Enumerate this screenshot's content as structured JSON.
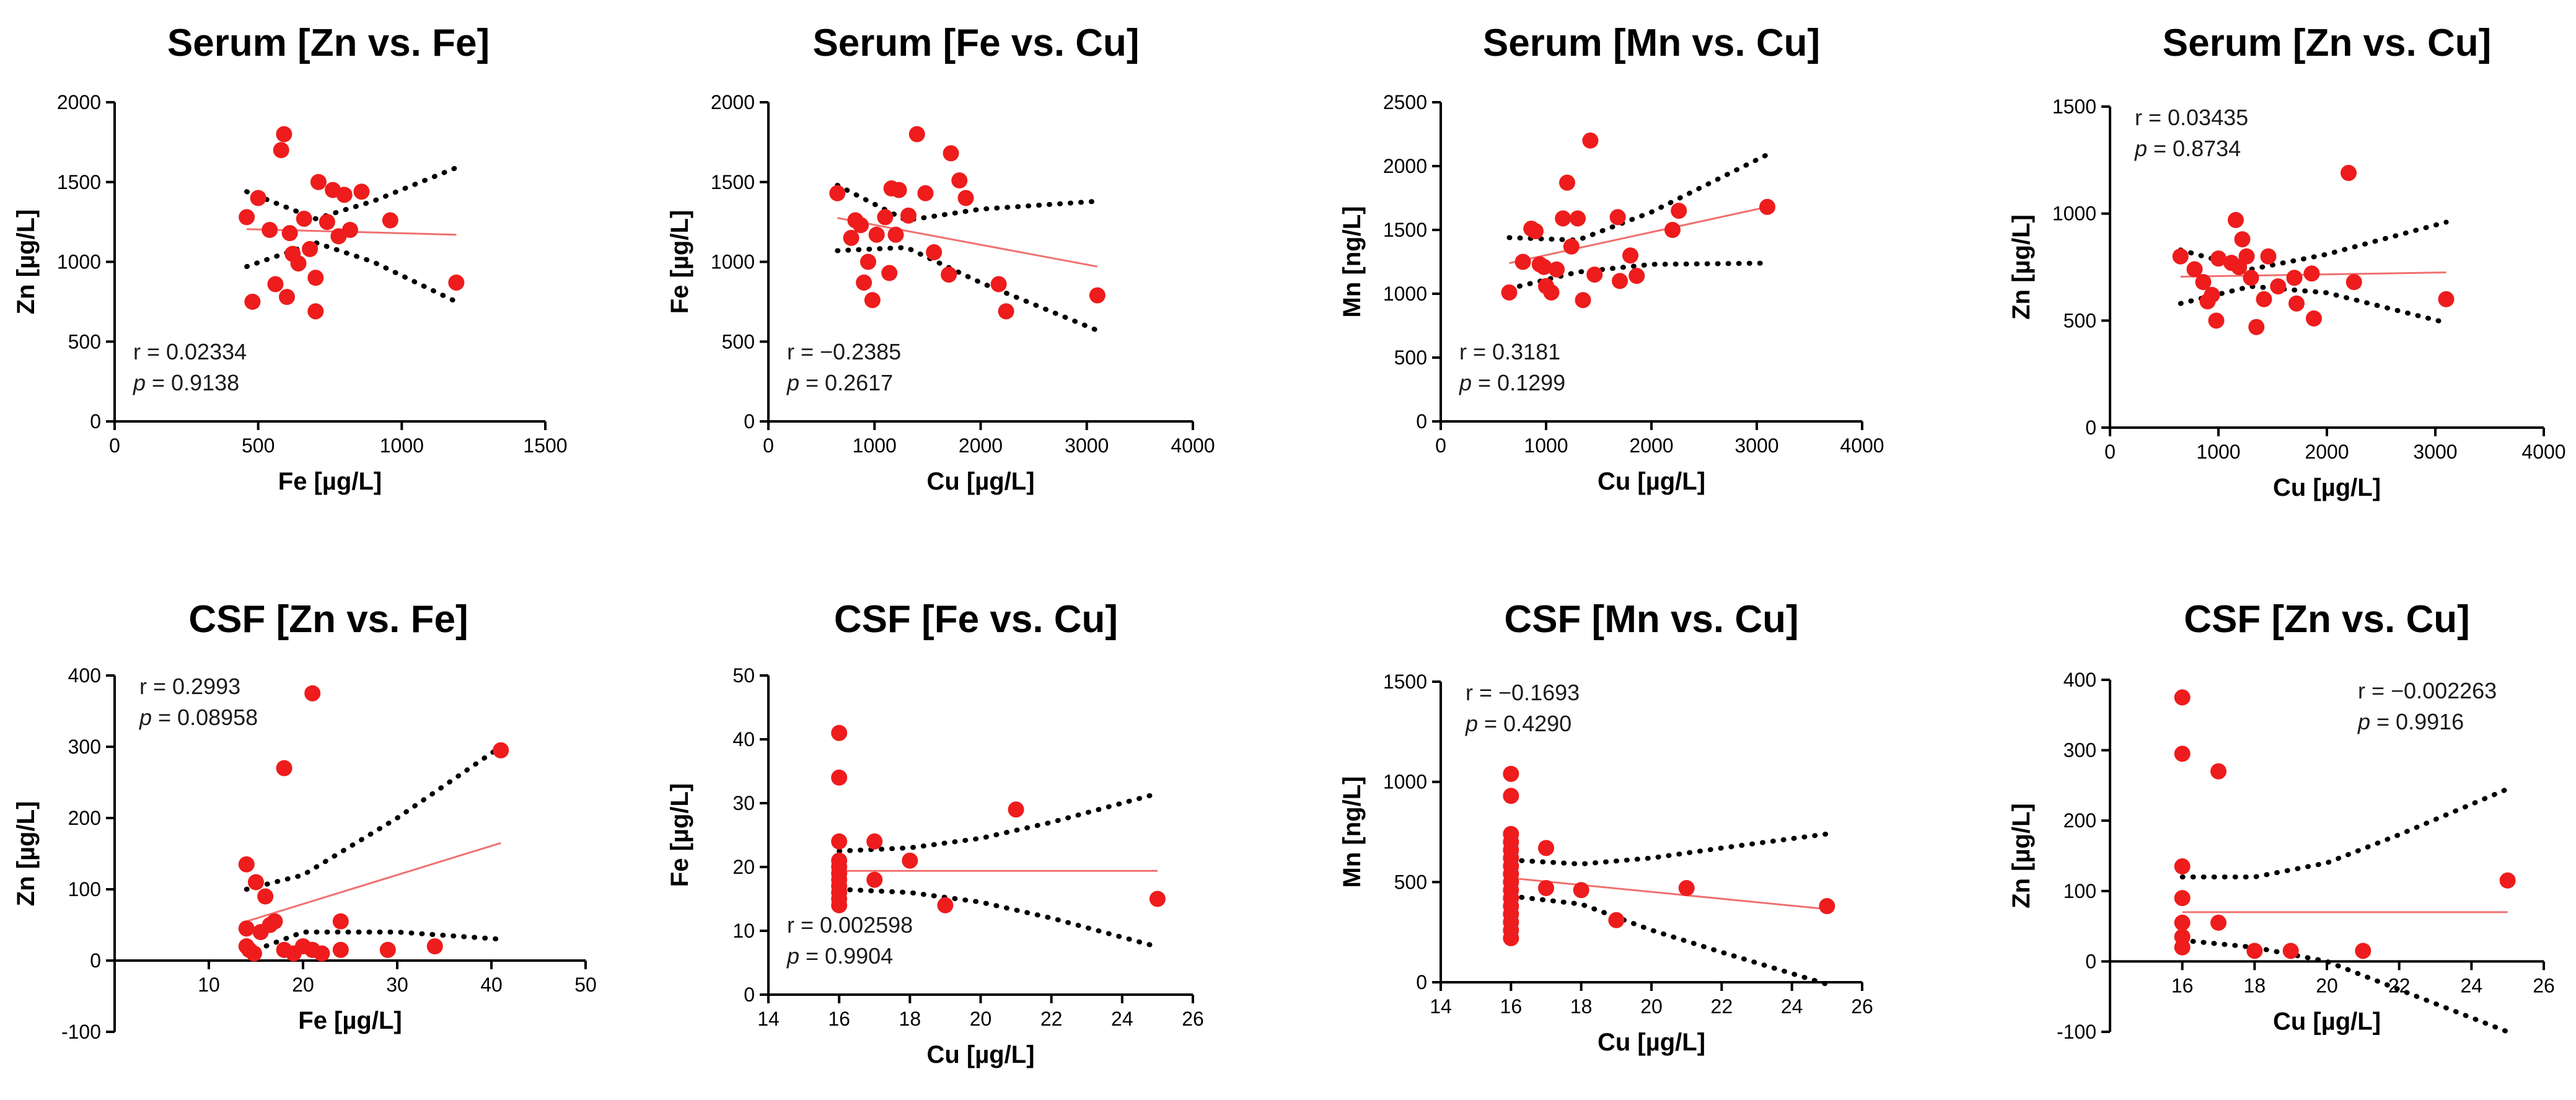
{
  "chart_data": [
    {
      "type": "scatter",
      "title": "Serum [Zn vs. Fe]",
      "xlabel": "Fe [µg/L]",
      "ylabel": "Zn [µg/L]",
      "xlim": [
        0,
        1500
      ],
      "ylim": [
        0,
        2000
      ],
      "xticks": [
        "0",
        "500",
        "1000",
        "1500"
      ],
      "yticks": [
        "0",
        "500",
        "1000",
        "1500",
        "2000"
      ],
      "r_text": "r = 0.02334",
      "p_label": "p",
      "p_value": " = 0.9138",
      "points": [
        [
          460,
          1280
        ],
        [
          480,
          750
        ],
        [
          500,
          1400
        ],
        [
          540,
          1200
        ],
        [
          560,
          860
        ],
        [
          580,
          1700
        ],
        [
          590,
          1800
        ],
        [
          600,
          780
        ],
        [
          610,
          1180
        ],
        [
          620,
          1050
        ],
        [
          640,
          990
        ],
        [
          660,
          1270
        ],
        [
          680,
          1080
        ],
        [
          700,
          900
        ],
        [
          700,
          690
        ],
        [
          710,
          1500
        ],
        [
          740,
          1250
        ],
        [
          760,
          1450
        ],
        [
          780,
          1160
        ],
        [
          800,
          1420
        ],
        [
          820,
          1200
        ],
        [
          860,
          1440
        ],
        [
          960,
          1260
        ],
        [
          1190,
          870
        ]
      ],
      "fit": [
        [
          460,
          1205
        ],
        [
          1190,
          1170
        ]
      ],
      "ci_upper": [
        [
          460,
          1440
        ],
        [
          700,
          1270
        ],
        [
          900,
          1380
        ],
        [
          1190,
          1590
        ]
      ],
      "ci_lower": [
        [
          460,
          970
        ],
        [
          700,
          1120
        ],
        [
          900,
          1000
        ],
        [
          1190,
          750
        ]
      ],
      "stats_pos": "bottom-left"
    },
    {
      "type": "scatter",
      "title": "Serum [Fe vs. Cu]",
      "xlabel": "Cu [µg/L]",
      "ylabel": "Fe [µg/L]",
      "xlim": [
        0,
        4000
      ],
      "ylim": [
        0,
        2000
      ],
      "xticks": [
        "0",
        "1000",
        "2000",
        "3000",
        "4000"
      ],
      "yticks": [
        "0",
        "500",
        "1000",
        "1500",
        "2000"
      ],
      "r_text": "r = −0.2385",
      "p_label": "p",
      "p_value": " = 0.2617",
      "points": [
        [
          650,
          1430
        ],
        [
          780,
          1150
        ],
        [
          820,
          1260
        ],
        [
          870,
          1230
        ],
        [
          900,
          870
        ],
        [
          940,
          1000
        ],
        [
          980,
          760
        ],
        [
          1020,
          1170
        ],
        [
          1100,
          1280
        ],
        [
          1140,
          930
        ],
        [
          1160,
          1460
        ],
        [
          1200,
          1170
        ],
        [
          1230,
          1450
        ],
        [
          1320,
          1290
        ],
        [
          1400,
          1800
        ],
        [
          1480,
          1430
        ],
        [
          1560,
          1060
        ],
        [
          1700,
          920
        ],
        [
          1720,
          1680
        ],
        [
          1800,
          1510
        ],
        [
          1860,
          1400
        ],
        [
          2170,
          860
        ],
        [
          2240,
          690
        ],
        [
          3100,
          790
        ]
      ],
      "fit": [
        [
          650,
          1275
        ],
        [
          3100,
          970
        ]
      ],
      "ci_upper": [
        [
          650,
          1480
        ],
        [
          1300,
          1260
        ],
        [
          2000,
          1330
        ],
        [
          3100,
          1380
        ]
      ],
      "ci_lower": [
        [
          650,
          1070
        ],
        [
          1300,
          1090
        ],
        [
          2000,
          870
        ],
        [
          3100,
          570
        ]
      ],
      "stats_pos": "bottom-left"
    },
    {
      "type": "scatter",
      "title": "Serum [Mn vs. Cu]",
      "xlabel": "Cu [µg/L]",
      "ylabel": "Mn [ng/L]",
      "xlim": [
        0,
        4000
      ],
      "ylim": [
        0,
        2500
      ],
      "xticks": [
        "0",
        "1000",
        "2000",
        "3000",
        "4000"
      ],
      "yticks": [
        "0",
        "500",
        "1000",
        "1500",
        "2000",
        "2500"
      ],
      "r_text": "r = 0.3181",
      "p_label": "p",
      "p_value": " = 0.1299",
      "points": [
        [
          650,
          1010
        ],
        [
          780,
          1250
        ],
        [
          860,
          1510
        ],
        [
          900,
          1490
        ],
        [
          940,
          1230
        ],
        [
          980,
          1210
        ],
        [
          1000,
          1060
        ],
        [
          1050,
          1010
        ],
        [
          1100,
          1190
        ],
        [
          1160,
          1590
        ],
        [
          1200,
          1870
        ],
        [
          1240,
          1370
        ],
        [
          1300,
          1590
        ],
        [
          1350,
          950
        ],
        [
          1420,
          2200
        ],
        [
          1460,
          1150
        ],
        [
          1680,
          1600
        ],
        [
          1700,
          1100
        ],
        [
          1800,
          1300
        ],
        [
          1860,
          1140
        ],
        [
          2200,
          1500
        ],
        [
          2260,
          1650
        ],
        [
          3100,
          1680
        ]
      ],
      "fit": [
        [
          650,
          1240
        ],
        [
          3100,
          1680
        ]
      ],
      "ci_upper": [
        [
          650,
          1440
        ],
        [
          1300,
          1420
        ],
        [
          2000,
          1640
        ],
        [
          3100,
          2090
        ]
      ],
      "ci_lower": [
        [
          650,
          1040
        ],
        [
          1300,
          1170
        ],
        [
          2000,
          1230
        ],
        [
          3100,
          1240
        ]
      ],
      "stats_pos": "bottom-left"
    },
    {
      "type": "scatter",
      "title": "Serum [Zn vs. Cu]",
      "xlabel": "Cu [µg/L]",
      "ylabel": "Zn [µg/L]",
      "xlim": [
        0,
        4000
      ],
      "ylim": [
        0,
        1500
      ],
      "xticks": [
        "0",
        "1000",
        "2000",
        "3000",
        "4000"
      ],
      "yticks": [
        "0",
        "500",
        "1000",
        "1500"
      ],
      "r_text": "r = 0.03435",
      "p_label": "p",
      "p_value": " = 0.8734",
      "points": [
        [
          650,
          800
        ],
        [
          780,
          740
        ],
        [
          860,
          680
        ],
        [
          900,
          590
        ],
        [
          940,
          620
        ],
        [
          980,
          500
        ],
        [
          1000,
          790
        ],
        [
          1120,
          770
        ],
        [
          1160,
          970
        ],
        [
          1190,
          750
        ],
        [
          1220,
          880
        ],
        [
          1260,
          800
        ],
        [
          1300,
          700
        ],
        [
          1350,
          470
        ],
        [
          1420,
          600
        ],
        [
          1460,
          800
        ],
        [
          1550,
          660
        ],
        [
          1700,
          700
        ],
        [
          1720,
          580
        ],
        [
          1860,
          720
        ],
        [
          1880,
          510
        ],
        [
          2200,
          1190
        ],
        [
          2250,
          680
        ],
        [
          3100,
          600
        ]
      ],
      "fit": [
        [
          650,
          705
        ],
        [
          3100,
          725
        ]
      ],
      "ci_upper": [
        [
          650,
          830
        ],
        [
          1300,
          740
        ],
        [
          2000,
          810
        ],
        [
          3100,
          960
        ]
      ],
      "ci_lower": [
        [
          650,
          580
        ],
        [
          1300,
          660
        ],
        [
          2000,
          630
        ],
        [
          3100,
          490
        ]
      ],
      "stats_pos": "top-left"
    },
    {
      "type": "scatter",
      "title": "CSF [Zn vs. Fe]",
      "xlabel": "Fe [µg/L]",
      "ylabel": "Zn [µg/L]",
      "xlim": [
        0,
        50
      ],
      "ylim": [
        -100,
        400
      ],
      "xticks": [
        "10",
        "20",
        "30",
        "40",
        "50"
      ],
      "yticks": [
        "-100",
        "0",
        "100",
        "200",
        "300",
        "400"
      ],
      "r_text": "r = 0.2993",
      "p_label": "p",
      "p_value": " = 0.08958",
      "points": [
        [
          14,
          135
        ],
        [
          14,
          45
        ],
        [
          14,
          20
        ],
        [
          14.3,
          15
        ],
        [
          14.8,
          10
        ],
        [
          15,
          110
        ],
        [
          15.5,
          40
        ],
        [
          16,
          90
        ],
        [
          16.5,
          50
        ],
        [
          17,
          55
        ],
        [
          18,
          270
        ],
        [
          18,
          15
        ],
        [
          19,
          10
        ],
        [
          20,
          20
        ],
        [
          21,
          375
        ],
        [
          21,
          15
        ],
        [
          22,
          10
        ],
        [
          24,
          55
        ],
        [
          24,
          15
        ],
        [
          29,
          15
        ],
        [
          34,
          20
        ],
        [
          41,
          295
        ]
      ],
      "fit": [
        [
          14,
          55
        ],
        [
          41,
          165
        ]
      ],
      "ci_upper": [
        [
          14,
          100
        ],
        [
          20,
          120
        ],
        [
          30,
          200
        ],
        [
          41,
          300
        ]
      ],
      "ci_lower": [
        [
          14,
          10
        ],
        [
          20,
          40
        ],
        [
          30,
          40
        ],
        [
          41,
          30
        ]
      ],
      "stats_pos": "top-left"
    },
    {
      "type": "scatter",
      "title": "CSF [Fe vs. Cu]",
      "xlabel": "Cu [µg/L]",
      "ylabel": "Fe [µg/L]",
      "xlim": [
        14,
        26
      ],
      "ylim": [
        0,
        50
      ],
      "xticks": [
        "14",
        "16",
        "18",
        "20",
        "22",
        "24",
        "26"
      ],
      "yticks": [
        "0",
        "10",
        "20",
        "30",
        "40",
        "50"
      ],
      "r_text": "r = 0.002598",
      "p_label": "p",
      "p_value": " = 0.9904",
      "points": [
        [
          16,
          41
        ],
        [
          16,
          34
        ],
        [
          16,
          24
        ],
        [
          16,
          21
        ],
        [
          16,
          20
        ],
        [
          16,
          19
        ],
        [
          16,
          18
        ],
        [
          16,
          17
        ],
        [
          16,
          16
        ],
        [
          16,
          15
        ],
        [
          16,
          14
        ],
        [
          17,
          24
        ],
        [
          17,
          18
        ],
        [
          18,
          21
        ],
        [
          19,
          14
        ],
        [
          21,
          29
        ],
        [
          25,
          15
        ]
      ],
      "fit": [
        [
          16,
          19.4
        ],
        [
          25,
          19.4
        ]
      ],
      "ci_upper": [
        [
          16,
          22.5
        ],
        [
          18,
          23
        ],
        [
          20,
          24.5
        ],
        [
          22,
          27
        ],
        [
          25,
          31.5
        ]
      ],
      "ci_lower": [
        [
          16,
          16.5
        ],
        [
          18,
          16
        ],
        [
          20,
          14.5
        ],
        [
          22,
          12
        ],
        [
          25,
          7.5
        ]
      ],
      "stats_pos": "bottom-left"
    },
    {
      "type": "scatter",
      "title": "CSF [Mn vs. Cu]",
      "xlabel": "Cu [µg/L]",
      "ylabel": "Mn [ng/L]",
      "xlim": [
        14,
        26
      ],
      "ylim": [
        0,
        1500
      ],
      "xticks": [
        "14",
        "16",
        "18",
        "20",
        "22",
        "24",
        "26"
      ],
      "yticks": [
        "0",
        "500",
        "1000",
        "1500"
      ],
      "r_text": "r = −0.1693",
      "p_label": "p",
      "p_value": " = 0.4290",
      "points": [
        [
          16,
          1040
        ],
        [
          16,
          930
        ],
        [
          16,
          740
        ],
        [
          16,
          700
        ],
        [
          16,
          660
        ],
        [
          16,
          620
        ],
        [
          16,
          580
        ],
        [
          16,
          540
        ],
        [
          16,
          500
        ],
        [
          16,
          460
        ],
        [
          16,
          420
        ],
        [
          16,
          380
        ],
        [
          16,
          340
        ],
        [
          16,
          300
        ],
        [
          16,
          260
        ],
        [
          16,
          220
        ],
        [
          17,
          670
        ],
        [
          17,
          470
        ],
        [
          18,
          460
        ],
        [
          19,
          310
        ],
        [
          21,
          470
        ],
        [
          25,
          380
        ]
      ],
      "fit": [
        [
          16,
          520
        ],
        [
          25,
          365
        ]
      ],
      "ci_upper": [
        [
          16,
          610
        ],
        [
          18,
          590
        ],
        [
          20,
          620
        ],
        [
          22,
          670
        ],
        [
          25,
          740
        ]
      ],
      "ci_lower": [
        [
          16,
          430
        ],
        [
          18,
          390
        ],
        [
          20,
          260
        ],
        [
          22,
          150
        ],
        [
          25,
          -10
        ]
      ],
      "stats_pos": "top-left"
    },
    {
      "type": "scatter",
      "title": "CSF [Zn vs. Cu]",
      "xlabel": "Cu [µg/L]",
      "ylabel": "Zn [µg/L]",
      "xlim": [
        14,
        26
      ],
      "ylim": [
        -100,
        400
      ],
      "xticks": [
        "16",
        "18",
        "20",
        "22",
        "24",
        "26"
      ],
      "yticks": [
        "-100",
        "0",
        "100",
        "200",
        "300",
        "400"
      ],
      "r_text": "r = −0.002263",
      "p_label": "p",
      "p_value": " = 0.9916",
      "points": [
        [
          16,
          375
        ],
        [
          16,
          295
        ],
        [
          16,
          135
        ],
        [
          16,
          90
        ],
        [
          16,
          55
        ],
        [
          16,
          35
        ],
        [
          16,
          20
        ],
        [
          17,
          270
        ],
        [
          17,
          55
        ],
        [
          18,
          15
        ],
        [
          19,
          15
        ],
        [
          21,
          15
        ],
        [
          25,
          115
        ]
      ],
      "fit": [
        [
          16,
          70
        ],
        [
          25,
          70
        ]
      ],
      "ci_upper": [
        [
          16,
          120
        ],
        [
          18,
          120
        ],
        [
          20,
          140
        ],
        [
          22,
          180
        ],
        [
          25,
          245
        ]
      ],
      "ci_lower": [
        [
          16,
          30
        ],
        [
          18,
          20
        ],
        [
          20,
          0
        ],
        [
          22,
          -40
        ],
        [
          25,
          -100
        ]
      ],
      "stats_pos": "top-right"
    }
  ]
}
